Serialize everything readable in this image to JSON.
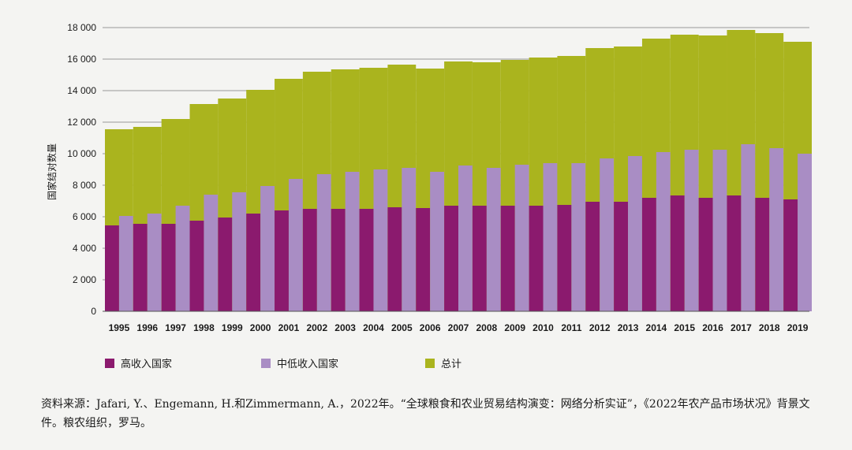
{
  "chart_data": {
    "type": "bar",
    "ylabel": "国家结对数量",
    "ylim": [
      0,
      18000
    ],
    "yticks": [
      0,
      2000,
      4000,
      6000,
      8000,
      10000,
      12000,
      14000,
      16000,
      18000
    ],
    "ytick_labels": [
      "0",
      "2 000",
      "4 000",
      "6 000",
      "8 000",
      "10 000",
      "12 000",
      "14 000",
      "16 000",
      "18 000"
    ],
    "categories": [
      "1995",
      "1996",
      "1997",
      "1998",
      "1999",
      "2000",
      "2001",
      "2002",
      "2003",
      "2004",
      "2005",
      "2006",
      "2007",
      "2008",
      "2009",
      "2010",
      "2011",
      "2012",
      "2013",
      "2014",
      "2015",
      "2016",
      "2017",
      "2018",
      "2019"
    ],
    "series": [
      {
        "name": "总计",
        "color": "#aab41e",
        "values": [
          11550,
          11700,
          12200,
          13150,
          13500,
          14050,
          14750,
          15200,
          15350,
          15450,
          15650,
          15400,
          15850,
          15800,
          15950,
          16100,
          16200,
          16700,
          16800,
          17300,
          17550,
          17500,
          17850,
          17650,
          17100
        ]
      },
      {
        "name": "高收入国家",
        "color": "#8b1a6e",
        "values": [
          5450,
          5550,
          5550,
          5750,
          5950,
          6200,
          6400,
          6500,
          6500,
          6500,
          6600,
          6550,
          6700,
          6700,
          6700,
          6700,
          6750,
          6950,
          6950,
          7200,
          7350,
          7200,
          7350,
          7200,
          7100
        ]
      },
      {
        "name": "中低收入国家",
        "color": "#a98dc4",
        "values": [
          6050,
          6200,
          6700,
          7400,
          7550,
          7950,
          8400,
          8700,
          8850,
          9000,
          9100,
          8850,
          9250,
          9100,
          9300,
          9400,
          9400,
          9700,
          9850,
          10100,
          10250,
          10250,
          10600,
          10350,
          10000
        ]
      }
    ],
    "legend": [
      "高收入国家",
      "中低收入国家",
      "总计"
    ],
    "grid": true
  },
  "source_text": "资料来源：Jafari, Y.、Engemann, H.和Zimmermann, A.，2022年。“全球粮食和农业贸易结构演变：网络分析实证”，《2022年农产品市场状况》背景文件。粮农组织，罗马。"
}
